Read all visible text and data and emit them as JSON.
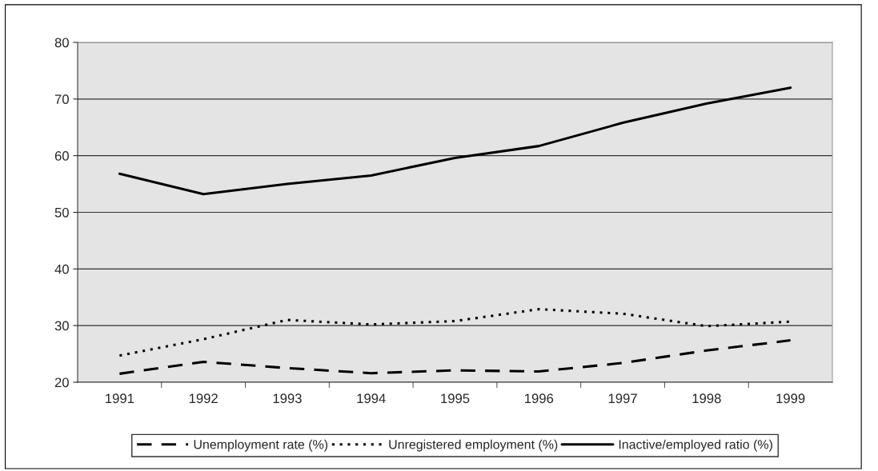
{
  "chart_data": {
    "type": "line",
    "categories": [
      "1991",
      "1992",
      "1993",
      "1994",
      "1995",
      "1996",
      "1997",
      "1998",
      "1999"
    ],
    "series": [
      {
        "name": "Unemployment rate (%)",
        "color": "#000000",
        "line_style": "dashed",
        "values": [
          21.5,
          23.6,
          22.5,
          21.6,
          22.1,
          21.9,
          23.4,
          25.6,
          27.4
        ]
      },
      {
        "name": "Unregistered employment (%)",
        "color": "#000000",
        "line_style": "dotted",
        "values": [
          24.7,
          27.6,
          31.0,
          30.2,
          30.8,
          32.9,
          32.1,
          29.9,
          30.7
        ]
      },
      {
        "name": "Inactive/employed ratio (%)",
        "color": "#000000",
        "line_style": "solid",
        "values": [
          56.8,
          53.2,
          55.0,
          56.5,
          59.6,
          61.7,
          65.8,
          69.2,
          72.0
        ]
      }
    ],
    "ylim": [
      20,
      80
    ],
    "yticks": [
      20,
      30,
      40,
      50,
      60,
      70,
      80
    ],
    "grid": "y",
    "legend": "bottom",
    "marker": "none"
  }
}
